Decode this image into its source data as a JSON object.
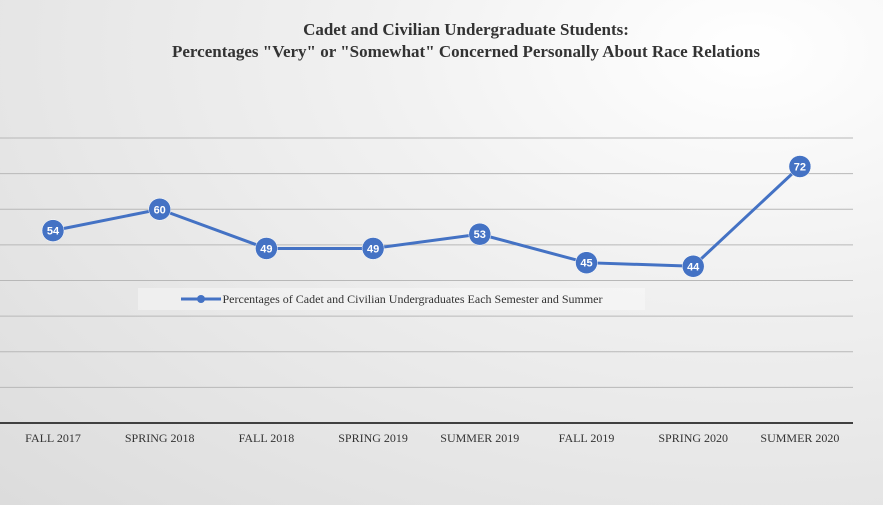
{
  "chart_data": {
    "type": "line",
    "title": "Cadet and Civilian Undergraduate Students:",
    "subtitle": "Percentages \"Very\" or \"Somewhat\" Concerned Personally About Race Relations",
    "categories": [
      "FALL 2017",
      "SPRING 2018",
      "FALL 2018",
      "SPRING 2019",
      "SUMMER 2019",
      "FALL 2019",
      "SPRING 2020",
      "SUMMER 2020"
    ],
    "series": [
      {
        "name": "Percentages of Cadet and Civilian Undergraduates Each Semester and Summer",
        "values": [
          54,
          60,
          49,
          49,
          53,
          45,
          44,
          72
        ],
        "color": "#4472C4"
      }
    ],
    "ylim": [
      0,
      80
    ],
    "y_gridlines_step": 10,
    "y_tick_labels_shown": false,
    "grid": true,
    "legend": "center",
    "data_labels": true
  }
}
